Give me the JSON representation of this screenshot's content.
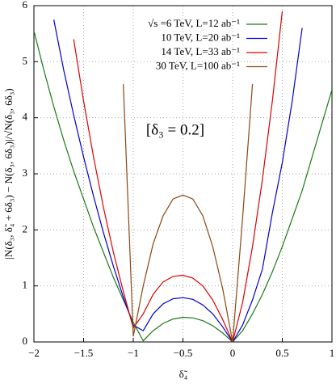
{
  "chart_data": {
    "type": "line",
    "xlabel": "δ̃₄",
    "ylabel": "|N(δ₃, δ̃₄ + 6δ₃) − N(δ₃, 6δ₃)|/√N(δ₃, 6δ₃)",
    "annotation": "[δ₃ = 0.2]",
    "x": [
      -2,
      -1.9,
      -1.8,
      -1.7,
      -1.6,
      -1.5,
      -1.4,
      -1.3,
      -1.2,
      -1.1,
      -1,
      -0.9,
      -0.8,
      -0.7,
      -0.6,
      -0.5,
      -0.4,
      -0.3,
      -0.2,
      -0.1,
      0,
      0.1,
      0.2,
      0.3,
      0.4,
      0.5,
      0.6,
      0.7,
      0.8,
      0.9,
      1
    ],
    "series": [
      {
        "name": "√s =6 TeV, L=12 ab⁻¹",
        "color": "#1a7a1a",
        "values": [
          5.55,
          4.85,
          4.2,
          3.6,
          3.05,
          2.55,
          2.05,
          1.6,
          1.15,
          0.75,
          0.35,
          0.02,
          0.2,
          0.33,
          0.41,
          0.44,
          0.43,
          0.38,
          0.29,
          0.16,
          0,
          0.2,
          0.5,
          0.85,
          1.25,
          1.7,
          2.2,
          2.7,
          3.3,
          3.9,
          4.5
        ]
      },
      {
        "name": "10 TeV, L=20 ab⁻¹",
        "color": "#0000cc",
        "values": [
          null,
          null,
          5.75,
          4.85,
          4.05,
          3.3,
          2.6,
          1.95,
          1.35,
          0.8,
          0.3,
          0.2,
          0.5,
          0.68,
          0.77,
          0.79,
          0.76,
          0.66,
          0.5,
          0.27,
          0,
          0.3,
          0.75,
          1.3,
          2.3,
          3.2,
          4.3,
          5.6,
          null,
          null,
          null
        ]
      },
      {
        "name": "14 TeV, L=33 ab⁻¹",
        "color": "#dd0000",
        "values": [
          null,
          null,
          null,
          null,
          5.4,
          4.3,
          3.3,
          2.4,
          1.6,
          0.9,
          0.25,
          0.5,
          0.85,
          1.07,
          1.17,
          1.19,
          1.14,
          1.0,
          0.75,
          0.4,
          0,
          0.7,
          1.7,
          2.9,
          4.3,
          5.9,
          null,
          null,
          null,
          null,
          null
        ]
      },
      {
        "name": "30 TeV, L=100 ab⁻¹",
        "color": "#8b4513",
        "values": [
          null,
          null,
          null,
          null,
          null,
          null,
          null,
          null,
          null,
          4.6,
          0.1,
          1.0,
          1.75,
          2.25,
          2.55,
          2.62,
          2.55,
          2.25,
          1.7,
          0.95,
          0,
          2.2,
          4.6,
          null,
          null,
          null,
          null,
          null,
          null,
          null,
          null
        ]
      }
    ],
    "xlim": [
      -2,
      1
    ],
    "xticks": [
      {
        "value": -2,
        "label": "−2"
      },
      {
        "value": -1.5,
        "label": "−1.5"
      },
      {
        "value": -1,
        "label": "−1"
      },
      {
        "value": -0.5,
        "label": "−0.5"
      },
      0,
      0.5,
      1
    ],
    "ylim": [
      0,
      6
    ],
    "yticks": [
      0,
      1,
      2,
      3,
      4,
      5,
      6
    ],
    "grid": true,
    "legend": "top-right"
  }
}
